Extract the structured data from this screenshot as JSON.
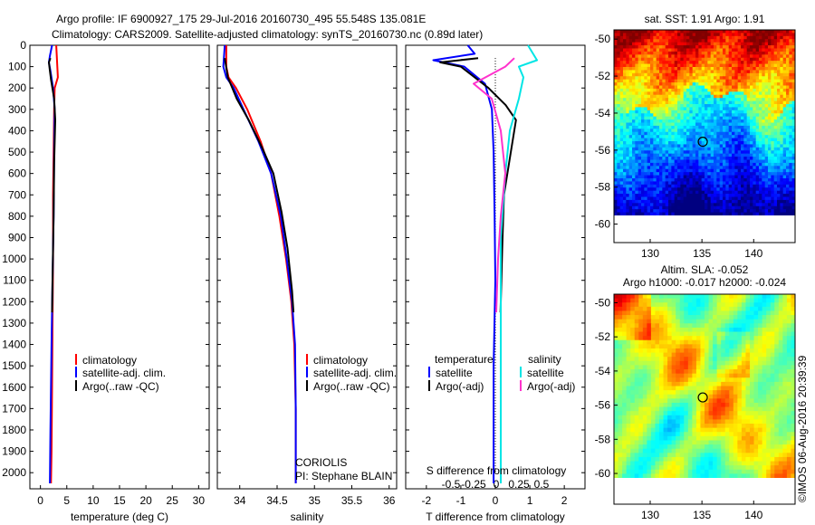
{
  "header": {
    "line1": "Argo profile: IF 6900927_175 29-Jul-2016 20160730_495 55.548S 135.081E",
    "line2": "Climatology: CARS2009. Satellite-adjusted climatology: synTS_20160730.nc (0.89d later)"
  },
  "colors": {
    "climatology": "#ff0000",
    "satellite": "#0000ff",
    "argo": "#000000",
    "sal_satellite": "#00e5e5",
    "sal_argo": "#ff33cc"
  },
  "chart_data": [
    {
      "type": "line",
      "id": "temperature",
      "xlabel": "temperature (deg C)",
      "xlim": [
        -2,
        32
      ],
      "ylim": [
        2050,
        0
      ],
      "xticks": [
        0,
        5,
        10,
        15,
        20,
        25,
        30
      ],
      "yticks": [
        0,
        100,
        200,
        300,
        400,
        500,
        600,
        700,
        800,
        900,
        1000,
        1100,
        1200,
        1300,
        1400,
        1500,
        1600,
        1700,
        1800,
        1900,
        2000
      ],
      "legend": [
        "climatology",
        "satellite-adj. clim.",
        "Argo(..raw -QC)"
      ],
      "series": [
        {
          "name": "climatology",
          "color": "#ff0000",
          "x": [
            3.0,
            3.1,
            3.2,
            3.3,
            2.7,
            2.6,
            2.5,
            2.4,
            2.4,
            2.3,
            2.2,
            2.1,
            2.0
          ],
          "y": [
            0,
            50,
            100,
            150,
            200,
            300,
            500,
            700,
            1000,
            1300,
            1600,
            1900,
            2050
          ]
        },
        {
          "name": "satellite-adj. clim.",
          "color": "#0000ff",
          "x": [
            2.2,
            1.8,
            1.6,
            1.9,
            2.4,
            2.7,
            2.6,
            2.5,
            2.3,
            2.1,
            1.9,
            1.8
          ],
          "y": [
            0,
            50,
            80,
            120,
            200,
            300,
            500,
            800,
            1100,
            1400,
            1800,
            2050
          ]
        },
        {
          "name": "Argo(..raw -QC)",
          "color": "#000000",
          "x": [
            1.9,
            1.6,
            1.8,
            2.0,
            2.6,
            2.8,
            2.6,
            2.5,
            2.3,
            2.2
          ],
          "y": [
            60,
            80,
            120,
            160,
            250,
            350,
            550,
            800,
            1100,
            1250
          ]
        }
      ]
    },
    {
      "type": "line",
      "id": "salinity",
      "xlabel": "salinity",
      "xlim": [
        33.7,
        36.1
      ],
      "ylim": [
        2050,
        0
      ],
      "xticks": [
        34,
        34.5,
        35,
        35.5,
        36
      ],
      "legend": [
        "climatology",
        "satellite-adj. clim.",
        "Argo(..raw -QC)"
      ],
      "annotation": [
        "CORIOLIS",
        "PI: Stephane BLAIN"
      ],
      "series": [
        {
          "name": "climatology",
          "color": "#ff0000",
          "x": [
            33.82,
            33.82,
            33.85,
            33.95,
            34.1,
            34.28,
            34.42,
            34.53,
            34.62,
            34.69,
            34.73,
            34.75,
            34.75,
            34.75
          ],
          "y": [
            0,
            100,
            150,
            200,
            300,
            450,
            600,
            800,
            1000,
            1200,
            1400,
            1700,
            1900,
            2050
          ]
        },
        {
          "name": "satellite-adj. clim.",
          "color": "#0000ff",
          "x": [
            33.8,
            33.78,
            33.82,
            33.92,
            34.05,
            34.25,
            34.42,
            34.55,
            34.63,
            34.7,
            34.74,
            34.75,
            34.75,
            34.75
          ],
          "y": [
            0,
            100,
            150,
            200,
            300,
            450,
            600,
            800,
            1000,
            1200,
            1400,
            1700,
            1900,
            2050
          ]
        },
        {
          "name": "Argo(..raw -QC)",
          "color": "#000000",
          "x": [
            33.8,
            33.84,
            33.96,
            34.12,
            34.3,
            34.45,
            34.56,
            34.64,
            34.7,
            34.72
          ],
          "y": [
            60,
            150,
            250,
            350,
            480,
            600,
            780,
            950,
            1150,
            1250
          ]
        }
      ]
    },
    {
      "type": "line",
      "id": "differences",
      "xlabel": "T difference from climatology",
      "top_axis_label": "S difference from climatology",
      "xlim": [
        -2.6,
        2.6
      ],
      "ylim": [
        2050,
        0
      ],
      "xticks": [
        -2,
        -1,
        0,
        1,
        2
      ],
      "top_ticks": [
        -0.5,
        -0.25,
        0,
        0.25,
        0.5
      ],
      "legend_left_title": "temperature",
      "legend_right_title": "salinity",
      "legend_left": [
        "satellite",
        "Argo(-adj)"
      ],
      "legend_right": [
        "satellite",
        "Argo(-adj)"
      ],
      "series": [
        {
          "name": "T satellite",
          "color": "#0000ff",
          "x": [
            -0.8,
            -0.6,
            -1.8,
            -0.9,
            -0.3,
            -0.1,
            -0.05,
            -0.02,
            0.0,
            -0.05,
            -0.05
          ],
          "y": [
            0,
            40,
            70,
            100,
            180,
            300,
            500,
            800,
            1100,
            1500,
            2050
          ]
        },
        {
          "name": "T Argo(-adj)",
          "color": "#000000",
          "x": [
            -0.5,
            -1.6,
            -1.0,
            -0.6,
            -0.2,
            0.3,
            0.6,
            0.45,
            0.25,
            0.2,
            0.15
          ],
          "y": [
            60,
            80,
            100,
            150,
            200,
            280,
            350,
            500,
            700,
            950,
            1250
          ]
        },
        {
          "name": "S satellite",
          "color": "#00e5e5",
          "x": [
            0.35,
            0.45,
            0.25,
            0.3,
            0.25,
            0.15,
            0.1,
            0.05,
            0.05,
            0.05,
            0.05
          ],
          "y": [
            0,
            70,
            100,
            150,
            250,
            400,
            600,
            900,
            1200,
            1600,
            2050
          ]
        },
        {
          "name": "S Argo(-adj)",
          "color": "#ff33cc",
          "x": [
            0.2,
            0.1,
            -0.25,
            -0.05,
            0.05,
            0.1,
            0.05,
            0.02,
            0.0
          ],
          "y": [
            60,
            100,
            180,
            250,
            400,
            600,
            800,
            1000,
            1250
          ]
        }
      ]
    },
    {
      "type": "heatmap",
      "id": "sst-map",
      "title": "sat. SST: 1.91 Argo: 1.91",
      "xlim": [
        126.5,
        144
      ],
      "ylim": [
        -61,
        -49.5
      ],
      "xticks": [
        130,
        135,
        140
      ],
      "yticks": [
        -50,
        -52,
        -54,
        -56,
        -58,
        -60
      ],
      "marker": {
        "lon": 135.081,
        "lat": -55.548
      }
    },
    {
      "type": "heatmap",
      "id": "sla-map",
      "title": "Altim. SLA: -0.052",
      "subtitle": "Argo h1000: -0.017 h2000: -0.024",
      "xlim": [
        126.5,
        144
      ],
      "ylim": [
        -61.8,
        -49.5
      ],
      "xticks": [
        130,
        135,
        140
      ],
      "yticks": [
        -50,
        -52,
        -54,
        -56,
        -58,
        -60
      ],
      "marker": {
        "lon": 135.081,
        "lat": -55.548
      }
    }
  ],
  "credit": "©IMOS 06-Aug-2016 20:39:39"
}
